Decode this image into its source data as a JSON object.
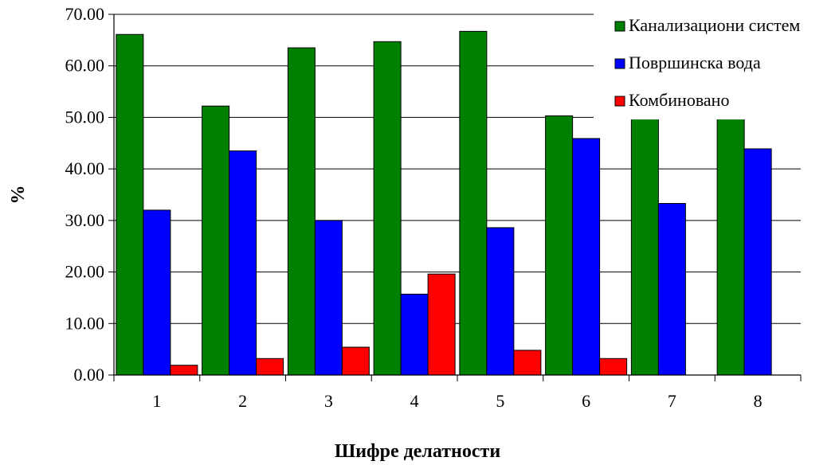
{
  "chart_data": {
    "type": "bar",
    "title": "",
    "xlabel": "Шифре делатности",
    "ylabel": "%",
    "categories": [
      "1",
      "2",
      "3",
      "4",
      "5",
      "6",
      "7",
      "8"
    ],
    "ylim": [
      0,
      70
    ],
    "yticks": [
      "0.00",
      "10.00",
      "20.00",
      "30.00",
      "40.00",
      "50.00",
      "60.00",
      "70.00"
    ],
    "grid": true,
    "legend_position": "top-right",
    "series": [
      {
        "name": "Канализациони систем",
        "color": "#008000",
        "values": [
          66.1,
          52.2,
          63.5,
          64.7,
          66.7,
          50.3,
          50.0,
          50.0
        ]
      },
      {
        "name": "Површинска вода",
        "color": "#0000ff",
        "values": [
          32.0,
          43.5,
          30.0,
          15.7,
          28.6,
          45.9,
          33.3,
          43.9
        ]
      },
      {
        "name": "Комбиновано",
        "color": "#ff0000",
        "values": [
          1.9,
          3.2,
          5.4,
          19.6,
          4.8,
          3.2,
          0,
          0
        ]
      }
    ]
  }
}
